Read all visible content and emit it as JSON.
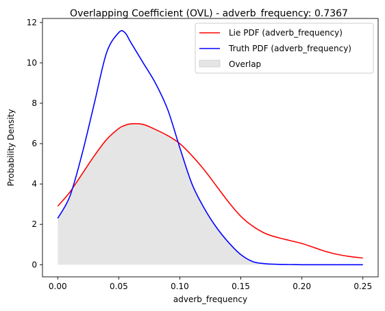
{
  "chart_data": {
    "type": "line",
    "title": "Overlapping Coefficient (OVL) - adverb_frequency: 0.7367",
    "xlabel": "adverb_frequency",
    "ylabel": "Probability Density",
    "xlim": [
      -0.0125,
      0.2625
    ],
    "ylim": [
      -0.6,
      12.2
    ],
    "xticks": [
      0.0,
      0.05,
      0.1,
      0.15,
      0.2,
      0.25
    ],
    "xtick_labels": [
      "0.00",
      "0.05",
      "0.10",
      "0.15",
      "0.20",
      "0.25"
    ],
    "yticks": [
      0,
      2,
      4,
      6,
      8,
      10,
      12
    ],
    "ytick_labels": [
      "0",
      "2",
      "4",
      "6",
      "8",
      "10",
      "12"
    ],
    "grid": false,
    "legend_position": "top-right",
    "x": [
      0.0,
      0.01,
      0.02,
      0.03,
      0.04,
      0.05,
      0.055,
      0.06,
      0.07,
      0.08,
      0.09,
      0.1,
      0.11,
      0.12,
      0.13,
      0.14,
      0.15,
      0.16,
      0.17,
      0.18,
      0.19,
      0.2,
      0.21,
      0.22,
      0.23,
      0.24,
      0.25
    ],
    "series": [
      {
        "name": "Lie PDF (adverb_frequency)",
        "color": "#ff0000",
        "values": [
          2.9,
          3.6,
          4.5,
          5.4,
          6.2,
          6.75,
          6.9,
          6.98,
          6.95,
          6.7,
          6.4,
          6.0,
          5.4,
          4.7,
          3.9,
          3.1,
          2.4,
          1.9,
          1.55,
          1.35,
          1.2,
          1.05,
          0.85,
          0.65,
          0.5,
          0.4,
          0.33
        ]
      },
      {
        "name": "Truth PDF (adverb_frequency)",
        "color": "#0000ff",
        "values": [
          2.3,
          3.4,
          5.5,
          8.0,
          10.5,
          11.5,
          11.5,
          11.0,
          10.0,
          9.0,
          7.7,
          5.8,
          4.0,
          2.8,
          1.85,
          1.1,
          0.5,
          0.15,
          0.05,
          0.02,
          0.01,
          0.0,
          0.0,
          0.0,
          0.0,
          0.0,
          0.0
        ]
      }
    ],
    "overlap": {
      "name": "Overlap",
      "color": "#d3d3d3"
    }
  }
}
